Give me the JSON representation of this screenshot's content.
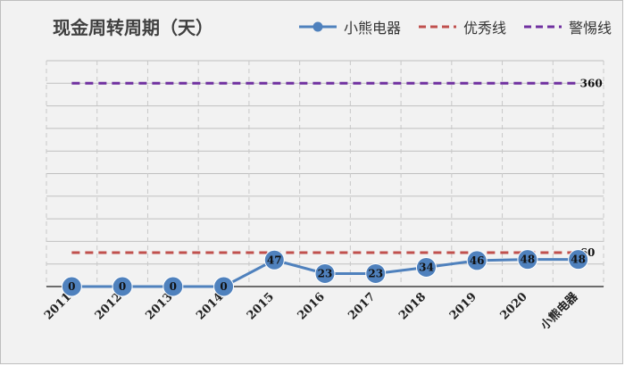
{
  "chart_data": {
    "type": "line",
    "title": "现金周转周期（天）",
    "categories": [
      "2011",
      "2012",
      "2013",
      "2014",
      "2015",
      "2016",
      "2017",
      "2018",
      "2019",
      "2020",
      "小熊电器"
    ],
    "series": [
      {
        "name": "小熊电器",
        "values": [
          0,
          0,
          0,
          0,
          47,
          23,
          23,
          34,
          46,
          48,
          48
        ],
        "color": "#4f81bd",
        "style": "line-marker"
      },
      {
        "name": "优秀线",
        "values": [
          60,
          60,
          60,
          60,
          60,
          60,
          60,
          60,
          60,
          60,
          60
        ],
        "color": "#c0504d",
        "style": "dashed",
        "end_label": "60"
      },
      {
        "name": "警惕线",
        "values": [
          360,
          360,
          360,
          360,
          360,
          360,
          360,
          360,
          360,
          360,
          360
        ],
        "color": "#7030a0",
        "style": "dashed",
        "end_label": "360"
      }
    ],
    "xlabel": "",
    "ylabel": "",
    "ylim": [
      0,
      400
    ],
    "grid": true,
    "legend": "top-right"
  },
  "colors": {
    "background": "#f2f2f2",
    "gridline": "#bfbfbf"
  }
}
